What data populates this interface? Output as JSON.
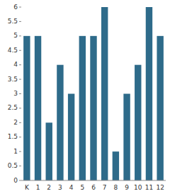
{
  "chart_data": {
    "type": "bar",
    "categories": [
      "K",
      "1",
      "2",
      "3",
      "4",
      "5",
      "6",
      "7",
      "8",
      "9",
      "10",
      "11",
      "12"
    ],
    "values": [
      5,
      5,
      2,
      4,
      3,
      5,
      5,
      6,
      1,
      3,
      4,
      6,
      5
    ],
    "color": "#2e6b8a",
    "ylim": [
      0,
      6
    ],
    "yticks": [
      0,
      0.5,
      1,
      1.5,
      2,
      2.5,
      3,
      3.5,
      4,
      4.5,
      5,
      5.5,
      6
    ],
    "grid": false
  }
}
